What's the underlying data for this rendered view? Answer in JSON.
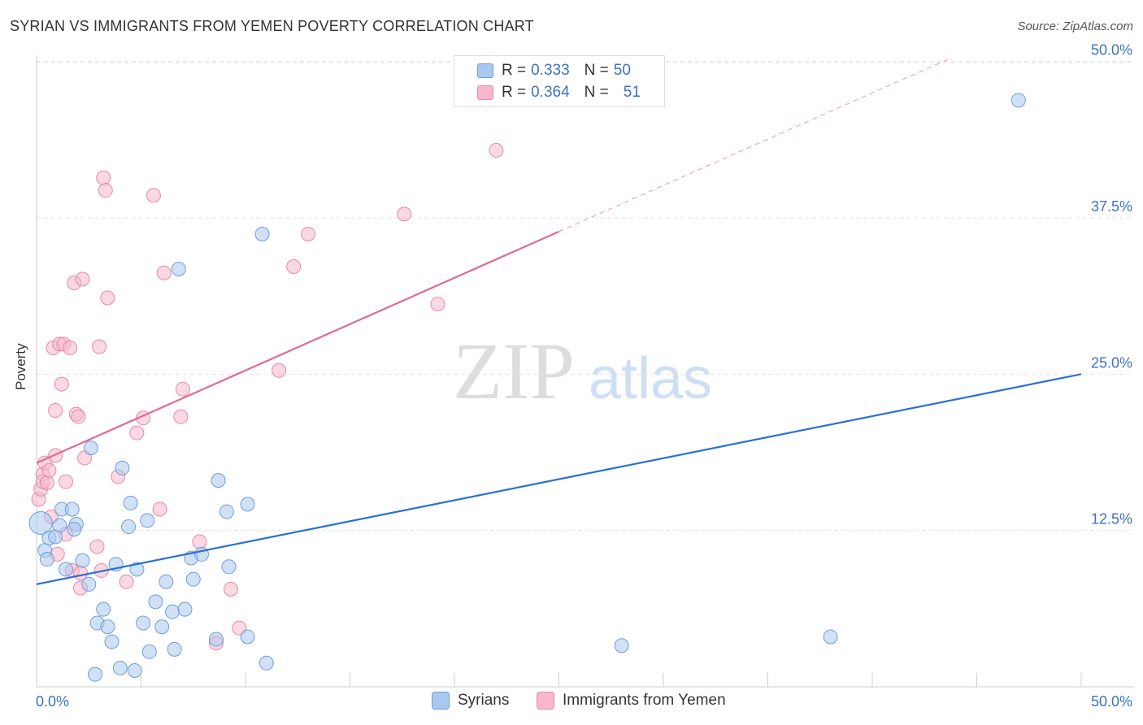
{
  "header": {
    "title": "SYRIAN VS IMMIGRANTS FROM YEMEN POVERTY CORRELATION CHART",
    "source": "Source: ZipAtlas.com"
  },
  "watermark": {
    "zip": "ZIP",
    "atlas": "atlas"
  },
  "legend": {
    "r_label": "R =",
    "n_label": "N =",
    "syrians": {
      "r": "0.333",
      "n": "50"
    },
    "yemen": {
      "r": "0.364",
      "n": "51"
    }
  },
  "colors": {
    "syrians_fill": "#a9c8ef",
    "syrians_stroke": "#6f9fd8",
    "syrians_line": "#2a70d0",
    "yemen_fill": "#f7b8cb",
    "yemen_stroke": "#e58aa8",
    "yemen_line": "#e06b93",
    "axis_text": "#3b72c4",
    "grid": "#e3e3e3"
  },
  "chart_data": {
    "type": "scatter",
    "title": "SYRIAN VS IMMIGRANTS FROM YEMEN POVERTY CORRELATION CHART",
    "xlabel": "",
    "ylabel": "Poverty",
    "xlim": [
      0,
      50
    ],
    "ylim": [
      0,
      50.5
    ],
    "x_tick_labels": [
      "0.0%",
      "50.0%"
    ],
    "y_ticks": [
      {
        "value": 12.5,
        "label": "12.5%"
      },
      {
        "value": 25.0,
        "label": "25.0%"
      },
      {
        "value": 37.5,
        "label": "37.5%"
      },
      {
        "value": 50.0,
        "label": "50.0%"
      }
    ],
    "series": [
      {
        "name": "Syrians",
        "r": 0.333,
        "n": 50,
        "trend": {
          "x0": 0,
          "y0": 8.2,
          "x1": 50,
          "y1": 25.0,
          "dashed_to": null
        },
        "points": [
          [
            0.2,
            13.1
          ],
          [
            0.4,
            10.9
          ],
          [
            0.5,
            10.2
          ],
          [
            0.6,
            11.9
          ],
          [
            0.9,
            12.0
          ],
          [
            1.1,
            12.9
          ],
          [
            1.2,
            14.2
          ],
          [
            1.7,
            14.2
          ],
          [
            1.9,
            13.0
          ],
          [
            1.8,
            12.6
          ],
          [
            2.2,
            10.1
          ],
          [
            2.5,
            8.2
          ],
          [
            2.6,
            19.1
          ],
          [
            2.9,
            5.1
          ],
          [
            3.2,
            6.2
          ],
          [
            3.4,
            4.8
          ],
          [
            3.6,
            3.6
          ],
          [
            3.8,
            9.8
          ],
          [
            4.0,
            1.5
          ],
          [
            4.1,
            17.5
          ],
          [
            4.4,
            12.8
          ],
          [
            4.5,
            14.7
          ],
          [
            4.7,
            1.3
          ],
          [
            4.8,
            9.4
          ],
          [
            5.1,
            5.1
          ],
          [
            5.3,
            13.3
          ],
          [
            5.4,
            2.8
          ],
          [
            5.7,
            6.8
          ],
          [
            6.0,
            4.8
          ],
          [
            6.2,
            8.4
          ],
          [
            6.5,
            6.0
          ],
          [
            6.6,
            3.0
          ],
          [
            7.1,
            6.2
          ],
          [
            7.4,
            10.3
          ],
          [
            7.5,
            8.6
          ],
          [
            7.9,
            10.6
          ],
          [
            8.6,
            3.8
          ],
          [
            8.7,
            16.5
          ],
          [
            9.1,
            14.0
          ],
          [
            9.2,
            9.6
          ],
          [
            10.1,
            14.6
          ],
          [
            10.1,
            4.0
          ],
          [
            11.0,
            1.9
          ],
          [
            10.8,
            36.2
          ],
          [
            6.8,
            33.4
          ],
          [
            28.0,
            3.3
          ],
          [
            38.0,
            4.0
          ],
          [
            47.0,
            46.9
          ],
          [
            2.8,
            1.0
          ],
          [
            1.4,
            9.4
          ]
        ]
      },
      {
        "name": "Immigrants from Yemen",
        "r": 0.364,
        "n": 51,
        "trend": {
          "x0": 0,
          "y0": 17.9,
          "x1": 25.0,
          "y1": 36.4,
          "dashed_to": [
            43.8,
            50.3
          ]
        },
        "points": [
          [
            0.1,
            15.0
          ],
          [
            0.2,
            15.8
          ],
          [
            0.3,
            17.0
          ],
          [
            0.3,
            16.4
          ],
          [
            0.4,
            17.9
          ],
          [
            0.5,
            16.3
          ],
          [
            0.6,
            17.3
          ],
          [
            0.7,
            13.6
          ],
          [
            0.8,
            27.1
          ],
          [
            0.9,
            18.5
          ],
          [
            0.9,
            22.1
          ],
          [
            1.1,
            27.4
          ],
          [
            1.2,
            24.2
          ],
          [
            1.3,
            27.4
          ],
          [
            1.4,
            16.4
          ],
          [
            1.4,
            12.2
          ],
          [
            1.6,
            27.1
          ],
          [
            1.7,
            9.3
          ],
          [
            1.8,
            32.3
          ],
          [
            1.9,
            21.8
          ],
          [
            2.0,
            21.6
          ],
          [
            2.1,
            9.1
          ],
          [
            2.2,
            32.6
          ],
          [
            2.1,
            7.9
          ],
          [
            2.3,
            18.3
          ],
          [
            2.9,
            11.2
          ],
          [
            3.0,
            27.2
          ],
          [
            3.1,
            9.3
          ],
          [
            3.2,
            40.7
          ],
          [
            3.3,
            39.7
          ],
          [
            3.4,
            31.1
          ],
          [
            3.9,
            16.8
          ],
          [
            4.3,
            8.4
          ],
          [
            4.8,
            20.3
          ],
          [
            5.1,
            21.5
          ],
          [
            5.6,
            39.3
          ],
          [
            5.9,
            14.2
          ],
          [
            6.1,
            33.1
          ],
          [
            6.9,
            21.6
          ],
          [
            7.0,
            23.8
          ],
          [
            7.8,
            11.6
          ],
          [
            8.6,
            3.5
          ],
          [
            9.3,
            7.8
          ],
          [
            9.7,
            4.7
          ],
          [
            11.6,
            25.3
          ],
          [
            12.3,
            33.6
          ],
          [
            13.0,
            36.2
          ],
          [
            17.6,
            37.8
          ],
          [
            19.2,
            30.6
          ],
          [
            22.0,
            42.9
          ],
          [
            1.0,
            10.6
          ]
        ]
      }
    ]
  },
  "bottom_legend": {
    "syrians": "Syrians",
    "yemen": "Immigrants from Yemen"
  }
}
